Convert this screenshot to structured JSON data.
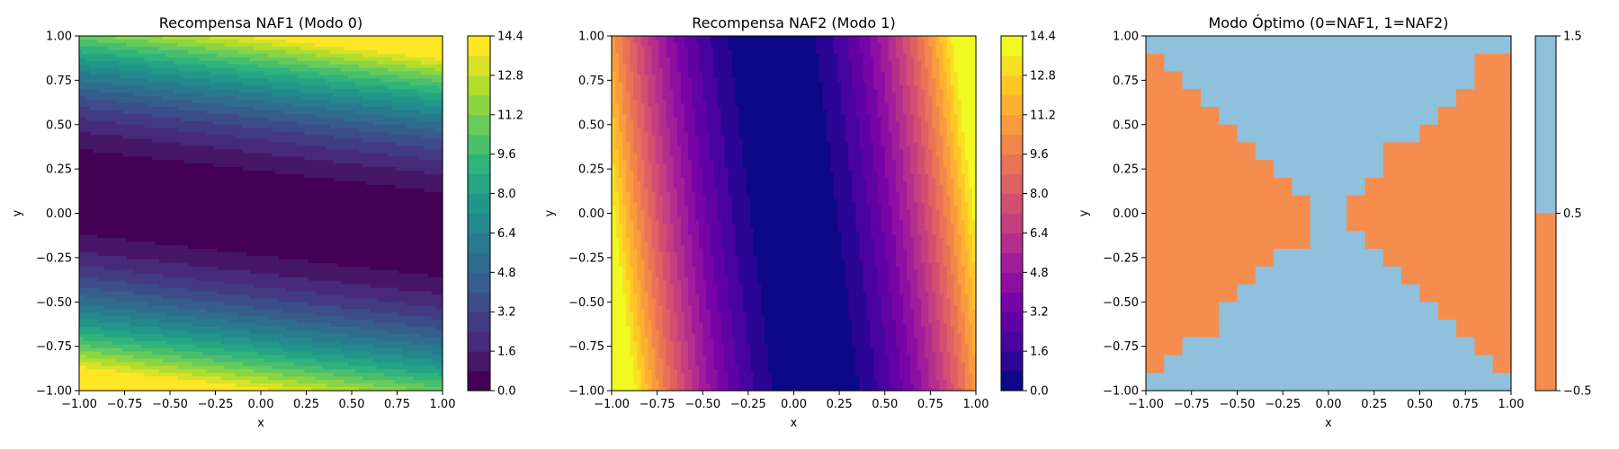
{
  "chart_data": [
    {
      "type": "contour",
      "title": "Recompensa NAF1 (Modo 0)",
      "xlabel": "x",
      "ylabel": "y",
      "xlim": [
        -1.0,
        1.0
      ],
      "ylim": [
        -1.0,
        1.0
      ],
      "x_ticks": [
        "−1.00",
        "−0.75",
        "−0.50",
        "−0.25",
        "0.00",
        "0.25",
        "0.50",
        "0.75",
        "1.00"
      ],
      "y_ticks": [
        "−1.00",
        "−0.75",
        "−0.50",
        "−0.25",
        "0.00",
        "0.25",
        "0.50",
        "0.75",
        "1.00"
      ],
      "colormap": "viridis",
      "levels": [
        0.0,
        0.8,
        1.6,
        2.4,
        3.2,
        4.0,
        4.8,
        5.6,
        6.4,
        7.2,
        8.0,
        8.8,
        9.6,
        10.4,
        11.2,
        12.0,
        12.8,
        13.6,
        14.4
      ],
      "colorbar_range": [
        0.0,
        14.4
      ],
      "colorbar_ticks": [
        "0.0",
        "1.6",
        "3.2",
        "4.8",
        "6.4",
        "8.0",
        "9.6",
        "11.2",
        "12.8",
        "14.4"
      ],
      "approx_function": "reward ≈ 14 * (y + 0.12*x)^2 ; minimum along a band from (−1, 0.12) to (1, −0.12)"
    },
    {
      "type": "contour",
      "title": "Recompensa NAF2 (Modo 1)",
      "xlabel": "x",
      "ylabel": "y",
      "xlim": [
        -1.0,
        1.0
      ],
      "ylim": [
        -1.0,
        1.0
      ],
      "x_ticks": [
        "−1.00",
        "−0.75",
        "−0.50",
        "−0.25",
        "0.00",
        "0.25",
        "0.50",
        "0.75",
        "1.00"
      ],
      "y_ticks": [
        "−1.00",
        "−0.75",
        "−0.50",
        "−0.25",
        "0.00",
        "0.25",
        "0.50",
        "0.75",
        "1.00"
      ],
      "colormap": "plasma",
      "levels": [
        0.0,
        0.8,
        1.6,
        2.4,
        3.2,
        4.0,
        4.8,
        5.6,
        6.4,
        7.2,
        8.0,
        8.8,
        9.6,
        10.4,
        11.2,
        12.0,
        12.8,
        13.6,
        14.4
      ],
      "colorbar_range": [
        0.0,
        14.4
      ],
      "colorbar_ticks": [
        "0.0",
        "1.6",
        "3.2",
        "4.8",
        "6.4",
        "8.0",
        "9.6",
        "11.2",
        "12.8",
        "14.4"
      ],
      "approx_function": "reward ≈ 14 * (x + 0.12*y)^2 ; minimum along a band from (0.12, −1) to (−0.12, 1)"
    },
    {
      "type": "heatmap",
      "title": "Modo Óptimo (0=NAF1, 1=NAF2)",
      "xlabel": "x",
      "ylabel": "y",
      "xlim": [
        -1.0,
        1.0
      ],
      "ylim": [
        -1.0,
        1.0
      ],
      "x_ticks": [
        "−1.00",
        "−0.75",
        "−0.50",
        "−0.25",
        "0.00",
        "0.25",
        "0.50",
        "0.75",
        "1.00"
      ],
      "y_ticks": [
        "−1.00",
        "−0.75",
        "−0.50",
        "−0.25",
        "0.00",
        "0.25",
        "0.50",
        "0.75",
        "1.00"
      ],
      "classes": [
        {
          "value": 0,
          "label": "NAF1",
          "color": "#f58d4f"
        },
        {
          "value": 1,
          "label": "NAF2",
          "color": "#8fc0dc"
        }
      ],
      "region_rule": "NAF1 optimal where |y + 0.12*x| < |x + 0.12*y|",
      "colorbar_range": [
        -0.5,
        1.5
      ],
      "colorbar_ticks": [
        "−0.5",
        "0.5",
        "1.5"
      ]
    }
  ]
}
